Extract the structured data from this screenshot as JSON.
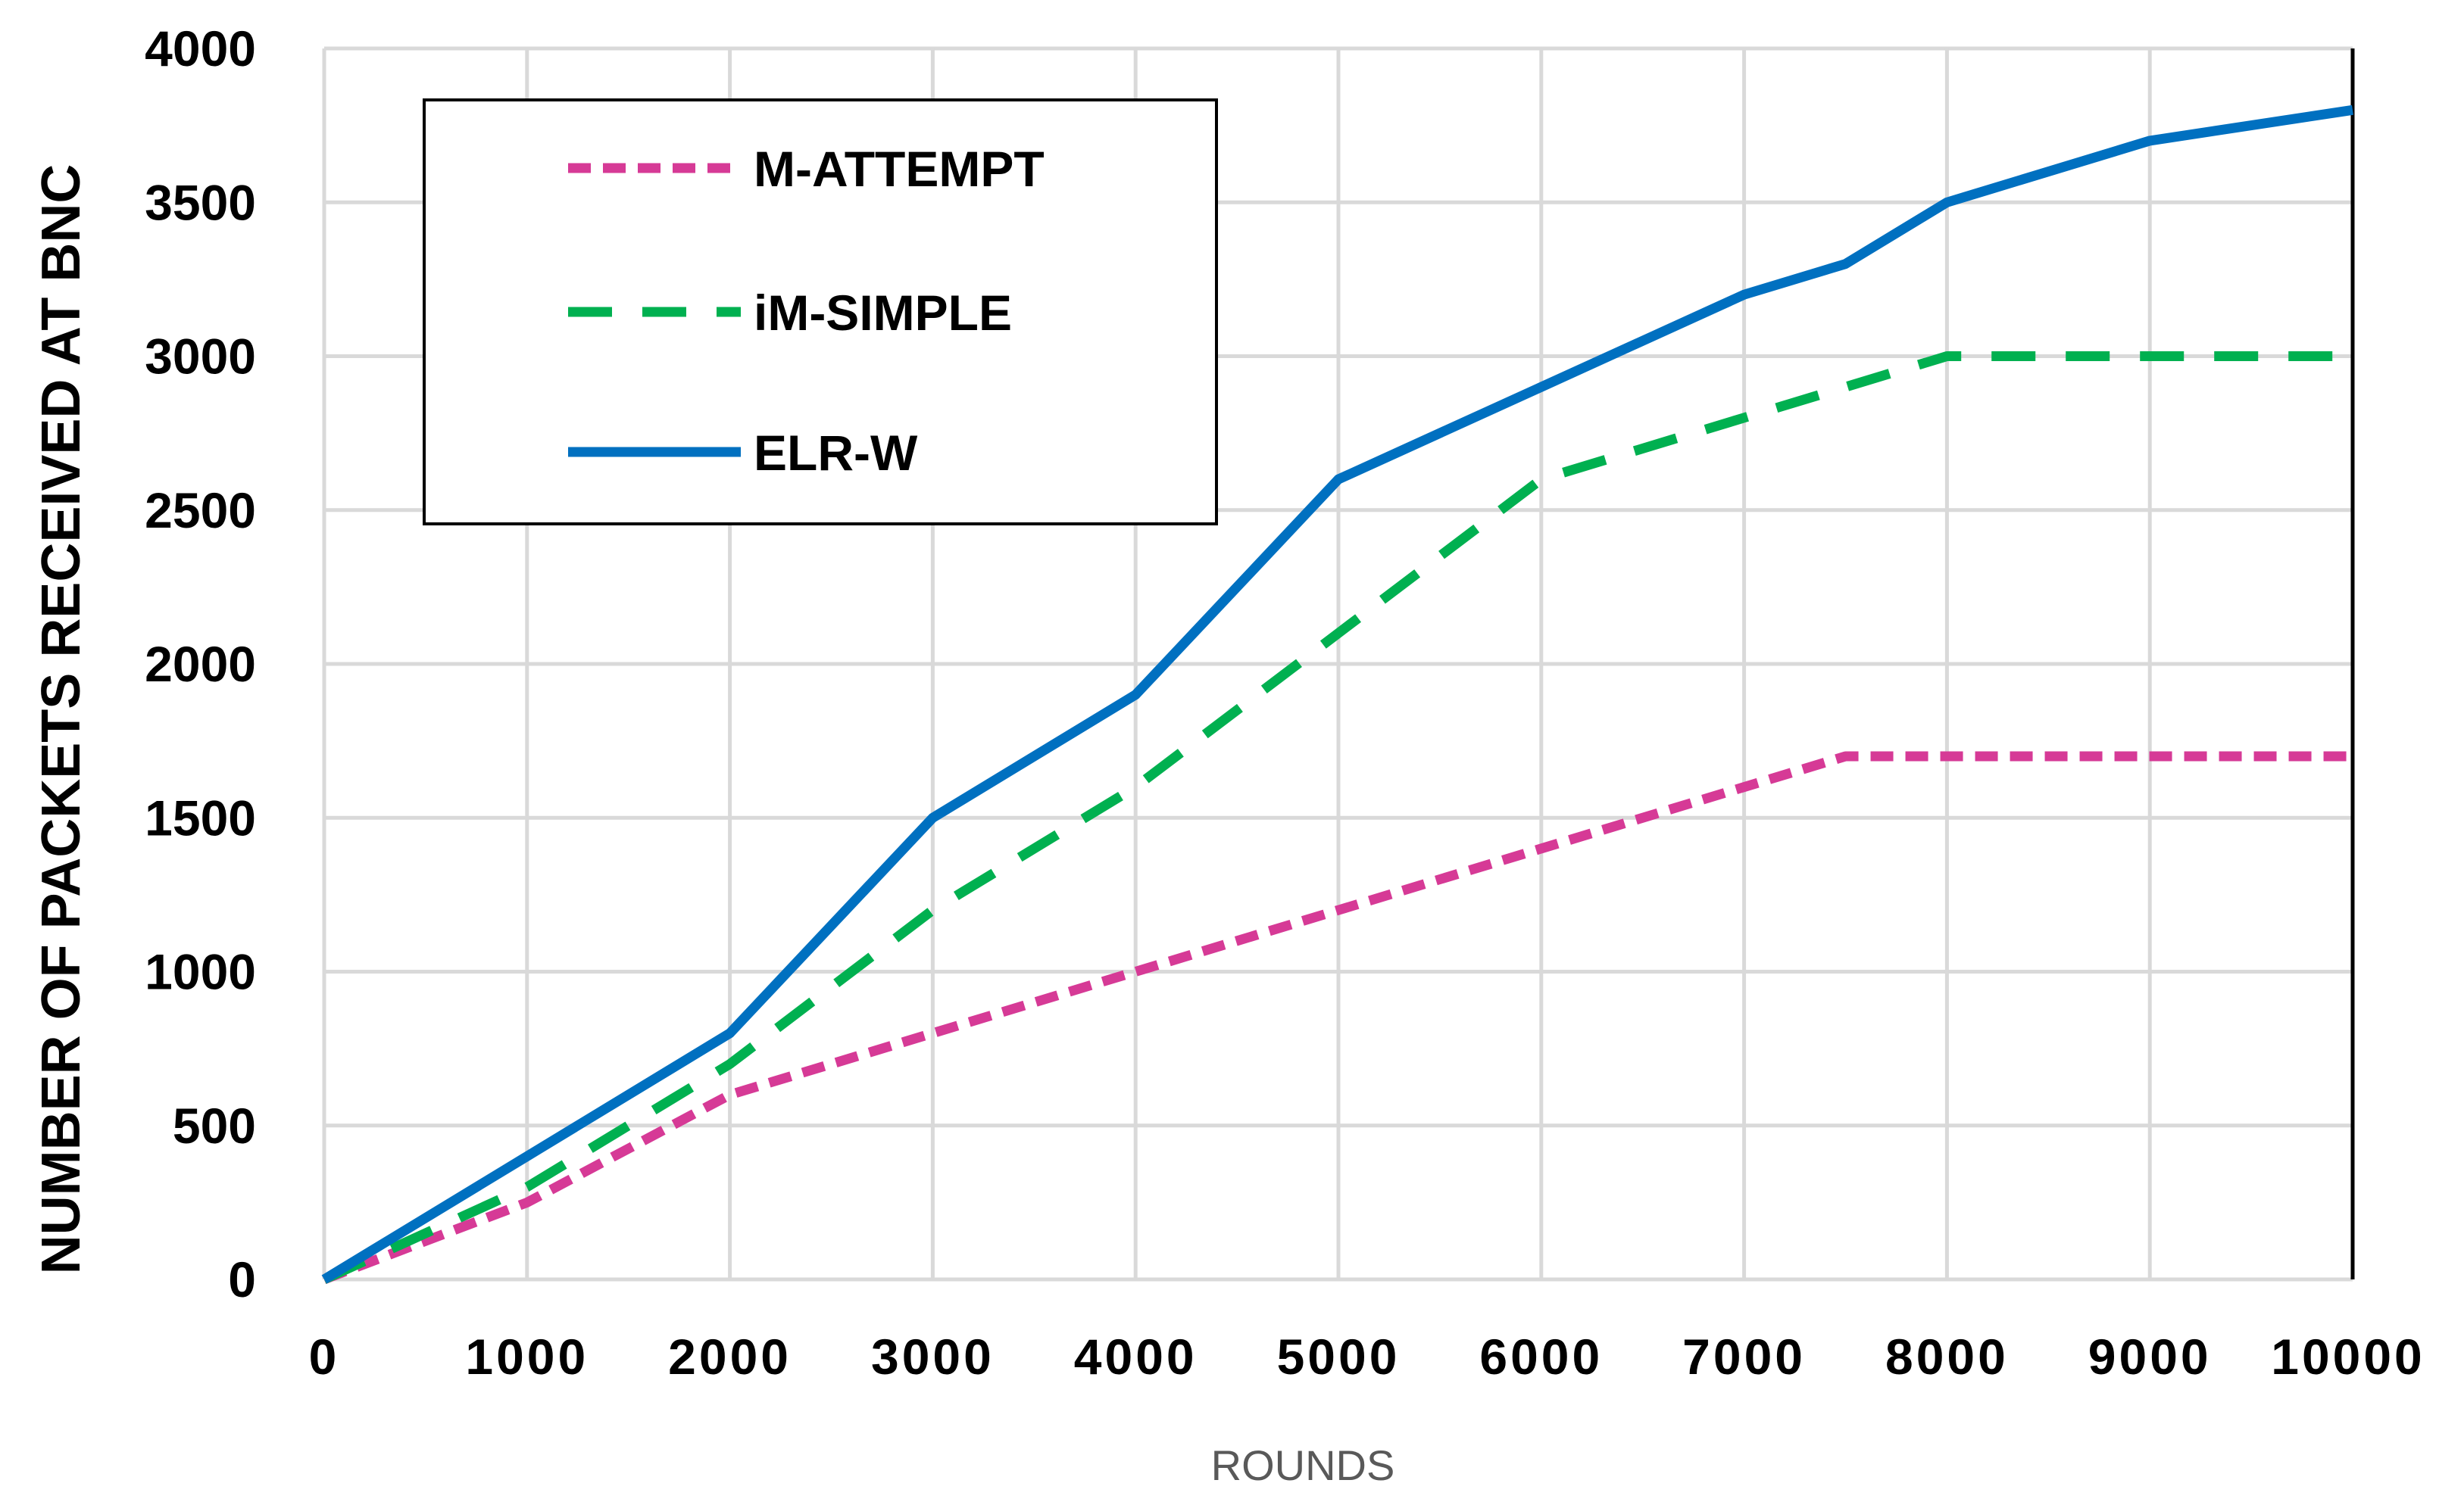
{
  "chart_data": {
    "type": "line",
    "xlabel": "ROUNDS",
    "ylabel": "NUMBER OF PACKETS RECEIVED AT BNC",
    "xlim": [
      0,
      10000
    ],
    "ylim": [
      0,
      4000
    ],
    "x_ticks": [
      "0",
      "1000",
      "2000",
      "3000",
      "4000",
      "5000",
      "6000",
      "7000",
      "8000",
      "9000",
      "10000"
    ],
    "y_ticks": [
      "0",
      "500",
      "1000",
      "1500",
      "2000",
      "2500",
      "3000",
      "3500",
      "4000"
    ],
    "grid": true,
    "legend_position": "top-left",
    "series": [
      {
        "name": "M-ATTEMPT",
        "color": "#D63A96",
        "style": "short-dash",
        "points": [
          [
            0,
            0
          ],
          [
            1000,
            250
          ],
          [
            2000,
            600
          ],
          [
            3000,
            800
          ],
          [
            4000,
            1000
          ],
          [
            5000,
            1200
          ],
          [
            6000,
            1400
          ],
          [
            7000,
            1600
          ],
          [
            7500,
            1700
          ],
          [
            8000,
            1700
          ],
          [
            9000,
            1700
          ],
          [
            10000,
            1700
          ]
        ]
      },
      {
        "name": "iM-SIMPLE",
        "color": "#00B050",
        "style": "long-dash",
        "points": [
          [
            0,
            0
          ],
          [
            1000,
            300
          ],
          [
            2000,
            700
          ],
          [
            3000,
            1200
          ],
          [
            4000,
            1600
          ],
          [
            5000,
            2100
          ],
          [
            6000,
            2600
          ],
          [
            7000,
            2800
          ],
          [
            7500,
            2900
          ],
          [
            8000,
            3000
          ],
          [
            9000,
            3000
          ],
          [
            10000,
            3000
          ]
        ]
      },
      {
        "name": "ELR-W",
        "color": "#0070C0",
        "style": "solid",
        "points": [
          [
            0,
            0
          ],
          [
            1000,
            400
          ],
          [
            2000,
            800
          ],
          [
            3000,
            1500
          ],
          [
            4000,
            1900
          ],
          [
            5000,
            2600
          ],
          [
            6000,
            2900
          ],
          [
            7000,
            3200
          ],
          [
            7500,
            3300
          ],
          [
            8000,
            3500
          ],
          [
            9000,
            3700
          ],
          [
            10000,
            3800
          ]
        ]
      }
    ]
  }
}
